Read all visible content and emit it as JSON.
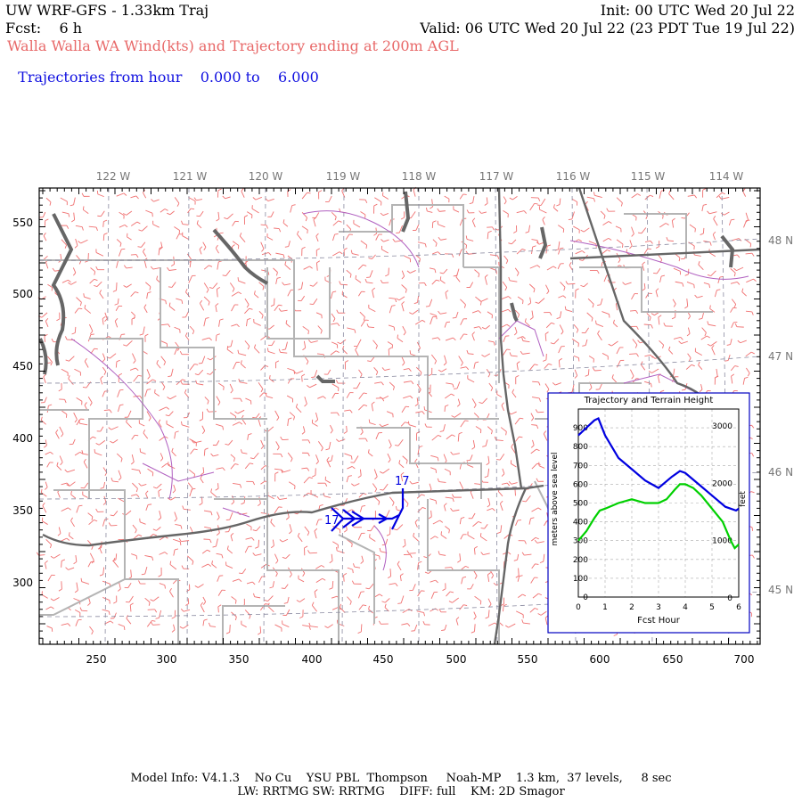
{
  "header": {
    "title": "UW WRF-GFS - 1.33km Traj",
    "init": "Init: 00 UTC Wed 20 Jul 22",
    "fcst": "Fcst:    6 h",
    "valid": "Valid: 06 UTC Wed 20 Jul 22 (23 PDT Tue 19 Jul 22)",
    "subtitle": "Walla Walla WA Wind(kts) and Trajectory ending at 200m AGL",
    "traj_label": "Trajectories from hour",
    "traj_from": "0.000 to",
    "traj_to": "6.000"
  },
  "map": {
    "lon_labels": [
      "122 W",
      "121 W",
      "120 W",
      "119 W",
      "118 W",
      "117 W",
      "116 W",
      "115 W",
      "114 W"
    ],
    "lat_labels": [
      "48 N",
      "47 N",
      "46 N",
      "45 N"
    ],
    "x_ticks": [
      "250",
      "300",
      "350",
      "400",
      "450",
      "500",
      "550",
      "600",
      "650",
      "700"
    ],
    "y_ticks": [
      "550",
      "500",
      "450",
      "400",
      "350",
      "300"
    ],
    "traj_labels": [
      "17",
      "17"
    ],
    "colors": {
      "wind": "#f07070",
      "traj": "#0000e0",
      "border": "#666666",
      "county": "#b0b0b0",
      "river": "#b060c0"
    }
  },
  "inset": {
    "title": "Trajectory and Terrain Height",
    "ylabel": "meters above sea level",
    "ylabel_right": "feet",
    "xlabel": "Fcst Hour",
    "y_ticks": [
      "900",
      "800",
      "700",
      "600",
      "500",
      "400",
      "300",
      "200",
      "100",
      "0"
    ],
    "x_ticks": [
      "0",
      "1",
      "2",
      "3",
      "4",
      "5",
      "6"
    ],
    "feet_ticks": [
      "3000",
      "2000",
      "1000",
      "0"
    ]
  },
  "chart_data": {
    "type": "line",
    "title": "Trajectory and Terrain Height",
    "xlabel": "Fcst Hour",
    "ylabel": "meters above sea level",
    "xlim": [
      0,
      6
    ],
    "ylim": [
      0,
      1000
    ],
    "grid": true,
    "series": [
      {
        "x": [
          0,
          0.3,
          0.6,
          0.75,
          1,
          1.5,
          2,
          2.5,
          3,
          3.5,
          3.8,
          4,
          4.5,
          5,
          5.5,
          5.9,
          6
        ],
        "values": [
          860,
          900,
          940,
          950,
          860,
          740,
          680,
          620,
          580,
          640,
          670,
          660,
          600,
          540,
          480,
          460,
          470
        ]
      },
      {
        "x": [
          0,
          0.3,
          0.6,
          0.8,
          1,
          1.5,
          2,
          2.5,
          3,
          3.3,
          3.6,
          3.8,
          4,
          4.3,
          4.6,
          5,
          5.4,
          5.7,
          5.85,
          6
        ],
        "values": [
          300,
          350,
          420,
          460,
          470,
          500,
          520,
          500,
          500,
          520,
          570,
          600,
          600,
          580,
          540,
          470,
          400,
          300,
          260,
          280
        ]
      }
    ],
    "colors": [
      "#0000e0",
      "#00d000"
    ]
  },
  "footer": {
    "line1": "Model Info: V4.1.3    No Cu    YSU PBL  Thompson     Noah-MP    1.3 km,  37 levels,     8 sec",
    "line2": "LW: RRTMG SW: RRTMG    DIFF: full    KM: 2D Smagor"
  }
}
